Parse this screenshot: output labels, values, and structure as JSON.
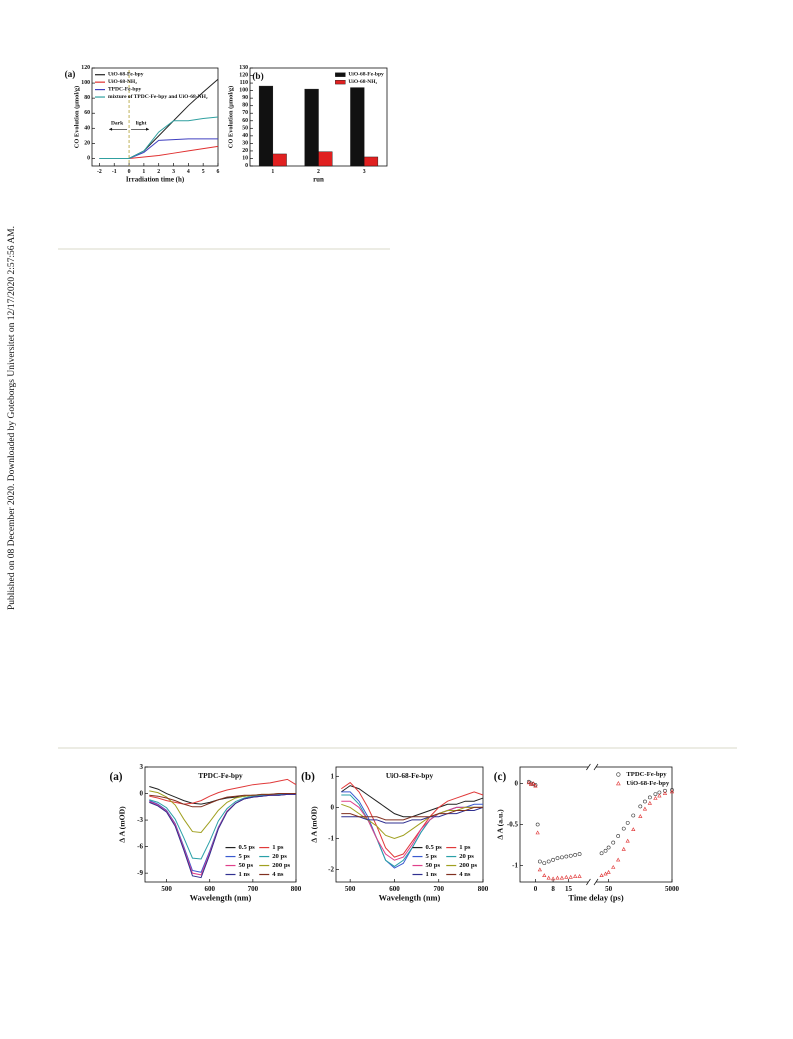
{
  "side_note": "Published on 08 December 2020. Downloaded by Goteborgs Universitet on 12/17/2020 2:57:56 AM.",
  "chart_data": [
    {
      "type": "line",
      "panel": "(a)",
      "xlabel": "Irradiation time (h)",
      "ylabel": "CO Evolution (μmol/g)",
      "x": [
        -2,
        -1,
        0,
        1,
        2,
        3,
        4,
        5,
        6
      ],
      "xlim": [
        -2.5,
        6
      ],
      "xticks": [
        -2,
        -1,
        0,
        1,
        2,
        3,
        4,
        5,
        6
      ],
      "ylim": [
        -10,
        120
      ],
      "yticks": [
        0,
        20,
        40,
        60,
        80,
        100,
        120
      ],
      "legend": "upper left",
      "annotations": [
        "Dark",
        "light"
      ],
      "series": [
        {
          "name": "UiO-68-Fe-bpy",
          "color": "#222222",
          "values": [
            0,
            0,
            0,
            10,
            30,
            50,
            70,
            88,
            105
          ]
        },
        {
          "name": "UiO-68-NH₂",
          "color": "#e03030",
          "values": [
            0,
            0,
            0,
            2,
            4,
            7,
            10,
            13,
            16
          ]
        },
        {
          "name": "TPDC-Fe-bpy",
          "color": "#4040c0",
          "values": [
            0,
            0,
            0,
            8,
            24,
            25,
            26,
            26,
            26
          ]
        },
        {
          "name": "mixture of TPDC-Fe-bpy and UiO-68-NH₂",
          "color": "#30a0a0",
          "values": [
            0,
            0,
            0,
            10,
            35,
            50,
            50,
            53,
            55
          ]
        }
      ]
    },
    {
      "type": "bar",
      "panel": "(b)",
      "xlabel": "run",
      "ylabel": "CO Evolution (μmol/g)",
      "categories": [
        "1",
        "2",
        "3"
      ],
      "ylim": [
        0,
        130
      ],
      "yticks": [
        0,
        10,
        20,
        30,
        40,
        50,
        60,
        70,
        80,
        90,
        100,
        110,
        120,
        130
      ],
      "legend": "upper right",
      "series": [
        {
          "name": "UiO-68-Fe-bpy",
          "color": "#111111",
          "values": [
            106,
            102,
            104
          ]
        },
        {
          "name": "UiO-68-NH₂",
          "color": "#e02020",
          "values": [
            16,
            19,
            12
          ]
        }
      ]
    },
    {
      "type": "line",
      "panel": "(a)",
      "title": "TPDC-Fe-bpy",
      "xlabel": "Wavelength (nm)",
      "ylabel": "Δ A (mOD)",
      "x": [
        460,
        480,
        500,
        520,
        540,
        560,
        580,
        600,
        620,
        640,
        660,
        680,
        700,
        720,
        740,
        760,
        780,
        800
      ],
      "xlim": [
        450,
        800
      ],
      "xticks": [
        500,
        600,
        700,
        800
      ],
      "ylim": [
        -10,
        3
      ],
      "yticks": [
        3,
        0,
        -3,
        -6,
        -9
      ],
      "legend": "lower right",
      "legend_columns": 2,
      "series": [
        {
          "name": "0.5 ps",
          "color": "#222222",
          "values": [
            0.8,
            0.5,
            0,
            -0.4,
            -0.8,
            -1.1,
            -1.2,
            -1.0,
            -0.7,
            -0.5,
            -0.4,
            -0.3,
            -0.2,
            -0.2,
            -0.1,
            -0.1,
            0,
            0
          ]
        },
        {
          "name": "1 ps",
          "color": "#e03a3a",
          "values": [
            -0.3,
            -0.5,
            -0.8,
            -1.0,
            -1.2,
            -1.1,
            -0.8,
            -0.3,
            0.1,
            0.4,
            0.6,
            0.8,
            1.0,
            1.1,
            1.2,
            1.4,
            1.6,
            1.0
          ]
        },
        {
          "name": "5 ps",
          "color": "#3a5ad0",
          "values": [
            -0.8,
            -1.2,
            -1.9,
            -3.4,
            -6.0,
            -8.7,
            -8.9,
            -6.5,
            -3.8,
            -2.0,
            -1.1,
            -0.6,
            -0.4,
            -0.3,
            -0.2,
            -0.2,
            -0.1,
            -0.1
          ]
        },
        {
          "name": "20 ps",
          "color": "#2aa0a8",
          "values": [
            -0.7,
            -1.0,
            -1.6,
            -2.9,
            -5.0,
            -7.3,
            -7.4,
            -5.4,
            -3.1,
            -1.7,
            -0.9,
            -0.5,
            -0.3,
            -0.2,
            -0.2,
            -0.1,
            -0.1,
            0
          ]
        },
        {
          "name": "50 ps",
          "color": "#e0408a",
          "values": [
            -0.9,
            -1.3,
            -2.0,
            -3.5,
            -6.2,
            -9.0,
            -9.2,
            -6.7,
            -3.9,
            -2.0,
            -1.1,
            -0.6,
            -0.4,
            -0.3,
            -0.2,
            -0.2,
            -0.1,
            -0.1
          ]
        },
        {
          "name": "200 ps",
          "color": "#a0a020",
          "values": [
            0.3,
            0.1,
            -0.4,
            -1.3,
            -2.9,
            -4.3,
            -4.4,
            -3.2,
            -1.9,
            -1.0,
            -0.5,
            -0.3,
            -0.2,
            -0.1,
            -0.1,
            0,
            0,
            0
          ]
        },
        {
          "name": "1 ns",
          "color": "#303090",
          "values": [
            -1.0,
            -1.4,
            -2.1,
            -3.7,
            -6.4,
            -9.3,
            -9.5,
            -6.9,
            -4.0,
            -2.1,
            -1.1,
            -0.6,
            -0.4,
            -0.3,
            -0.2,
            -0.2,
            -0.1,
            -0.1
          ]
        },
        {
          "name": "4 ns",
          "color": "#803020",
          "values": [
            -0.2,
            -0.3,
            -0.5,
            -0.8,
            -1.2,
            -1.5,
            -1.5,
            -1.1,
            -0.7,
            -0.4,
            -0.3,
            -0.2,
            -0.2,
            -0.1,
            -0.1,
            0,
            0,
            0
          ]
        }
      ]
    },
    {
      "type": "line",
      "panel": "(b)",
      "title": "UiO-68-Fe-bpy",
      "xlabel": "Wavelength (nm)",
      "ylabel": "Δ A (mOD)",
      "x": [
        480,
        500,
        520,
        540,
        560,
        580,
        600,
        620,
        640,
        660,
        680,
        700,
        720,
        740,
        760,
        780,
        800
      ],
      "xlim": [
        468,
        800
      ],
      "xticks": [
        500,
        600,
        700,
        800
      ],
      "ylim": [
        -2.4,
        1.3
      ],
      "yticks": [
        1,
        0,
        -1,
        -2
      ],
      "legend": "lower right",
      "legend_columns": 2,
      "series": [
        {
          "name": "0.5 ps",
          "color": "#222222",
          "values": [
            0.5,
            0.7,
            0.6,
            0.4,
            0.2,
            0,
            -0.2,
            -0.3,
            -0.3,
            -0.2,
            -0.1,
            0,
            0.1,
            0.1,
            0.2,
            0.2,
            0.3
          ]
        },
        {
          "name": "1 ps",
          "color": "#e03a3a",
          "values": [
            0.6,
            0.8,
            0.5,
            0,
            -0.6,
            -1.3,
            -1.6,
            -1.5,
            -1.1,
            -0.7,
            -0.3,
            0,
            0.2,
            0.3,
            0.4,
            0.5,
            0.4
          ]
        },
        {
          "name": "5 ps",
          "color": "#3a5ad0",
          "values": [
            0.5,
            0.5,
            0.2,
            -0.3,
            -1.0,
            -1.7,
            -1.95,
            -1.8,
            -1.3,
            -0.8,
            -0.4,
            -0.2,
            -0.1,
            0,
            0,
            0.1,
            0.1
          ]
        },
        {
          "name": "20 ps",
          "color": "#2aa0a8",
          "values": [
            0.4,
            0.4,
            0.1,
            -0.4,
            -1.0,
            -1.7,
            -1.9,
            -1.7,
            -1.3,
            -0.8,
            -0.4,
            -0.2,
            -0.1,
            0,
            0,
            0,
            0
          ]
        },
        {
          "name": "50 ps",
          "color": "#e0408a",
          "values": [
            0.2,
            0.2,
            0,
            -0.4,
            -1.0,
            -1.5,
            -1.7,
            -1.6,
            -1.2,
            -0.7,
            -0.4,
            -0.2,
            -0.1,
            0,
            0,
            0,
            0
          ]
        },
        {
          "name": "200 ps",
          "color": "#a0a020",
          "values": [
            0.1,
            0,
            -0.2,
            -0.4,
            -0.6,
            -0.9,
            -1.0,
            -0.9,
            -0.7,
            -0.5,
            -0.3,
            -0.2,
            -0.1,
            -0.1,
            0,
            0,
            0
          ]
        },
        {
          "name": "1 ns",
          "color": "#303090",
          "values": [
            -0.3,
            -0.3,
            -0.3,
            -0.4,
            -0.4,
            -0.5,
            -0.5,
            -0.5,
            -0.4,
            -0.4,
            -0.3,
            -0.3,
            -0.2,
            -0.2,
            -0.1,
            -0.1,
            0
          ]
        },
        {
          "name": "4 ns",
          "color": "#803020",
          "values": [
            -0.2,
            -0.2,
            -0.3,
            -0.3,
            -0.3,
            -0.4,
            -0.4,
            -0.4,
            -0.3,
            -0.3,
            -0.3,
            -0.2,
            -0.2,
            -0.1,
            -0.1,
            0,
            0
          ]
        }
      ]
    },
    {
      "type": "scatter",
      "panel": "(c)",
      "xlabel": "Time delay (ps)",
      "ylabel": "Δ A (a.u.)",
      "xscale": "broken",
      "x": [
        -3,
        -2,
        -1,
        0,
        1,
        2,
        4,
        6,
        8,
        10,
        12,
        14,
        16,
        18,
        20,
        30,
        40,
        50,
        70,
        100,
        150,
        200,
        300,
        500,
        700,
        1000,
        1500,
        2000,
        3000,
        5000
      ],
      "xlim": [
        -7,
        5000
      ],
      "xticks": [
        0,
        8,
        15,
        50,
        5000
      ],
      "ylim": [
        -1.2,
        0.2
      ],
      "yticks": [
        0,
        -0.5,
        -1
      ],
      "legend": "upper right",
      "series": [
        {
          "name": "TPDC-Fe-bpy",
          "color": "#333333",
          "marker": "circle",
          "values": [
            0.02,
            0,
            -0.01,
            -0.02,
            -0.5,
            -0.95,
            -0.97,
            -0.95,
            -0.93,
            -0.91,
            -0.9,
            -0.89,
            -0.88,
            -0.87,
            -0.86,
            -0.85,
            -0.82,
            -0.78,
            -0.72,
            -0.64,
            -0.55,
            -0.48,
            -0.39,
            -0.28,
            -0.22,
            -0.17,
            -0.13,
            -0.11,
            -0.09,
            -0.08
          ]
        },
        {
          "name": "UiO-68-Fe-bpy",
          "color": "#e03030",
          "marker": "triangle",
          "values": [
            0.01,
            -0.01,
            0,
            -0.03,
            -0.6,
            -1.05,
            -1.12,
            -1.15,
            -1.16,
            -1.15,
            -1.15,
            -1.14,
            -1.14,
            -1.13,
            -1.13,
            -1.12,
            -1.1,
            -1.08,
            -1.02,
            -0.93,
            -0.8,
            -0.7,
            -0.56,
            -0.4,
            -0.31,
            -0.24,
            -0.18,
            -0.15,
            -0.12,
            -0.1
          ]
        }
      ]
    }
  ]
}
